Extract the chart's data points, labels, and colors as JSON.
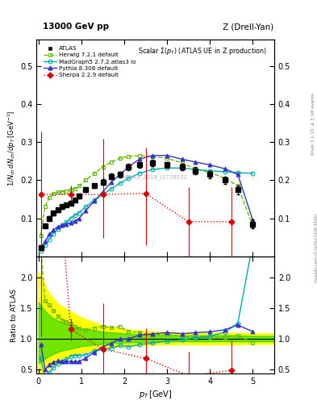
{
  "title": "Scalar $\\Sigma(p_T)$ (ATLAS UE in Z production)",
  "header_left": "13000 GeV pp",
  "header_right": "Z (Drell-Yan)",
  "ylabel_main": "$1/N_{\\rm ch}\\,dN_{\\rm ch}/dp_T\\,[{\\rm GeV}^{-1}]$",
  "ylabel_ratio": "Ratio to ATLAS",
  "xlabel": "$p_T\\,[{\\rm GeV}]$",
  "watermark": "ATLAS_2019_I1736531",
  "right_label1": "Rivet 3.1.10, ≥ 3.1M events",
  "right_label2": "mcplots.cern.ch [arXiv:1306.3436]",
  "atlas_x": [
    0.05,
    0.15,
    0.25,
    0.35,
    0.45,
    0.55,
    0.65,
    0.75,
    0.85,
    0.95,
    1.1,
    1.3,
    1.5,
    1.7,
    1.9,
    2.1,
    2.35,
    2.65,
    3.0,
    3.35,
    3.65,
    4.0,
    4.35,
    4.65,
    5.0
  ],
  "atlas_y": [
    0.022,
    0.08,
    0.1,
    0.113,
    0.122,
    0.13,
    0.135,
    0.14,
    0.148,
    0.158,
    0.175,
    0.185,
    0.195,
    0.21,
    0.215,
    0.235,
    0.24,
    0.245,
    0.24,
    0.235,
    0.225,
    0.215,
    0.2,
    0.175,
    0.085
  ],
  "atlas_yerr": [
    0.003,
    0.005,
    0.005,
    0.005,
    0.005,
    0.005,
    0.005,
    0.005,
    0.005,
    0.006,
    0.006,
    0.006,
    0.007,
    0.007,
    0.007,
    0.008,
    0.008,
    0.008,
    0.008,
    0.009,
    0.009,
    0.01,
    0.01,
    0.012,
    0.012
  ],
  "herwig_x": [
    0.05,
    0.15,
    0.25,
    0.35,
    0.45,
    0.55,
    0.65,
    0.75,
    0.85,
    0.95,
    1.1,
    1.3,
    1.5,
    1.7,
    1.9,
    2.1,
    2.35,
    2.65,
    3.0,
    3.35,
    3.65,
    4.0,
    4.35,
    4.65,
    5.0
  ],
  "herwig_y": [
    0.055,
    0.13,
    0.155,
    0.165,
    0.168,
    0.17,
    0.172,
    0.175,
    0.178,
    0.185,
    0.2,
    0.218,
    0.235,
    0.248,
    0.258,
    0.262,
    0.265,
    0.262,
    0.258,
    0.245,
    0.23,
    0.22,
    0.205,
    0.185,
    0.08
  ],
  "madgraph_x": [
    0.05,
    0.15,
    0.25,
    0.35,
    0.45,
    0.55,
    0.65,
    0.75,
    0.85,
    0.95,
    1.1,
    1.3,
    1.5,
    1.7,
    1.9,
    2.1,
    2.35,
    2.65,
    3.0,
    3.35,
    3.65,
    4.0,
    4.35,
    4.65,
    5.0
  ],
  "madgraph_y": [
    0.015,
    0.03,
    0.045,
    0.06,
    0.072,
    0.082,
    0.09,
    0.1,
    0.108,
    0.115,
    0.13,
    0.148,
    0.162,
    0.178,
    0.192,
    0.205,
    0.218,
    0.228,
    0.232,
    0.232,
    0.228,
    0.225,
    0.222,
    0.22,
    0.218
  ],
  "pythia_x": [
    0.05,
    0.15,
    0.25,
    0.35,
    0.45,
    0.55,
    0.65,
    0.75,
    0.85,
    0.95,
    1.1,
    1.3,
    1.5,
    1.7,
    1.9,
    2.1,
    2.35,
    2.65,
    3.0,
    3.35,
    3.65,
    4.0,
    4.35,
    4.65,
    5.0
  ],
  "pythia_y": [
    0.02,
    0.04,
    0.058,
    0.07,
    0.078,
    0.082,
    0.085,
    0.088,
    0.093,
    0.1,
    0.12,
    0.145,
    0.17,
    0.195,
    0.215,
    0.235,
    0.255,
    0.265,
    0.265,
    0.255,
    0.248,
    0.24,
    0.23,
    0.215,
    0.095
  ],
  "sherpa_x": [
    0.05,
    0.75,
    1.5,
    2.5,
    3.5,
    4.5
  ],
  "sherpa_y": [
    0.163,
    0.162,
    0.163,
    0.165,
    0.091,
    0.091
  ],
  "sherpa_yerr_lo": [
    0.14,
    0.025,
    0.115,
    0.135,
    0.091,
    0.091
  ],
  "sherpa_yerr_hi": [
    0.165,
    0.025,
    0.145,
    0.12,
    0.091,
    0.091
  ],
  "atlas_band_x": [
    0.0,
    0.05,
    0.1,
    0.2,
    0.3,
    0.5,
    1.0,
    1.5,
    2.0,
    2.5,
    3.0,
    3.5,
    4.0,
    4.5,
    5.0,
    5.5
  ],
  "atlas_band_yellow_lo": [
    0.4,
    0.42,
    0.45,
    0.5,
    0.55,
    0.65,
    0.78,
    0.85,
    0.88,
    0.9,
    0.91,
    0.91,
    0.91,
    0.91,
    0.92,
    0.92
  ],
  "atlas_band_yellow_hi": [
    2.1,
    2.05,
    1.95,
    1.8,
    1.7,
    1.55,
    1.35,
    1.22,
    1.16,
    1.13,
    1.11,
    1.1,
    1.1,
    1.1,
    1.09,
    1.09
  ],
  "atlas_band_green_lo": [
    0.6,
    0.62,
    0.65,
    0.7,
    0.74,
    0.8,
    0.88,
    0.92,
    0.94,
    0.95,
    0.96,
    0.96,
    0.96,
    0.96,
    0.96,
    0.96
  ],
  "atlas_band_green_hi": [
    1.6,
    1.55,
    1.5,
    1.42,
    1.36,
    1.28,
    1.17,
    1.12,
    1.09,
    1.07,
    1.06,
    1.06,
    1.06,
    1.06,
    1.05,
    1.05
  ],
  "herwig_color": "#66bb00",
  "madgraph_color": "#00aaaa",
  "pythia_color": "#3333cc",
  "sherpa_color": "#dd0000",
  "atlas_color": "#000000",
  "ylim_main": [
    0.0,
    0.57
  ],
  "ylim_ratio": [
    0.43,
    2.35
  ],
  "xlim": [
    -0.05,
    5.5
  ],
  "yticks_main": [
    0.1,
    0.2,
    0.3,
    0.4,
    0.5
  ],
  "yticks_ratio": [
    0.5,
    1.0,
    1.5,
    2.0
  ]
}
